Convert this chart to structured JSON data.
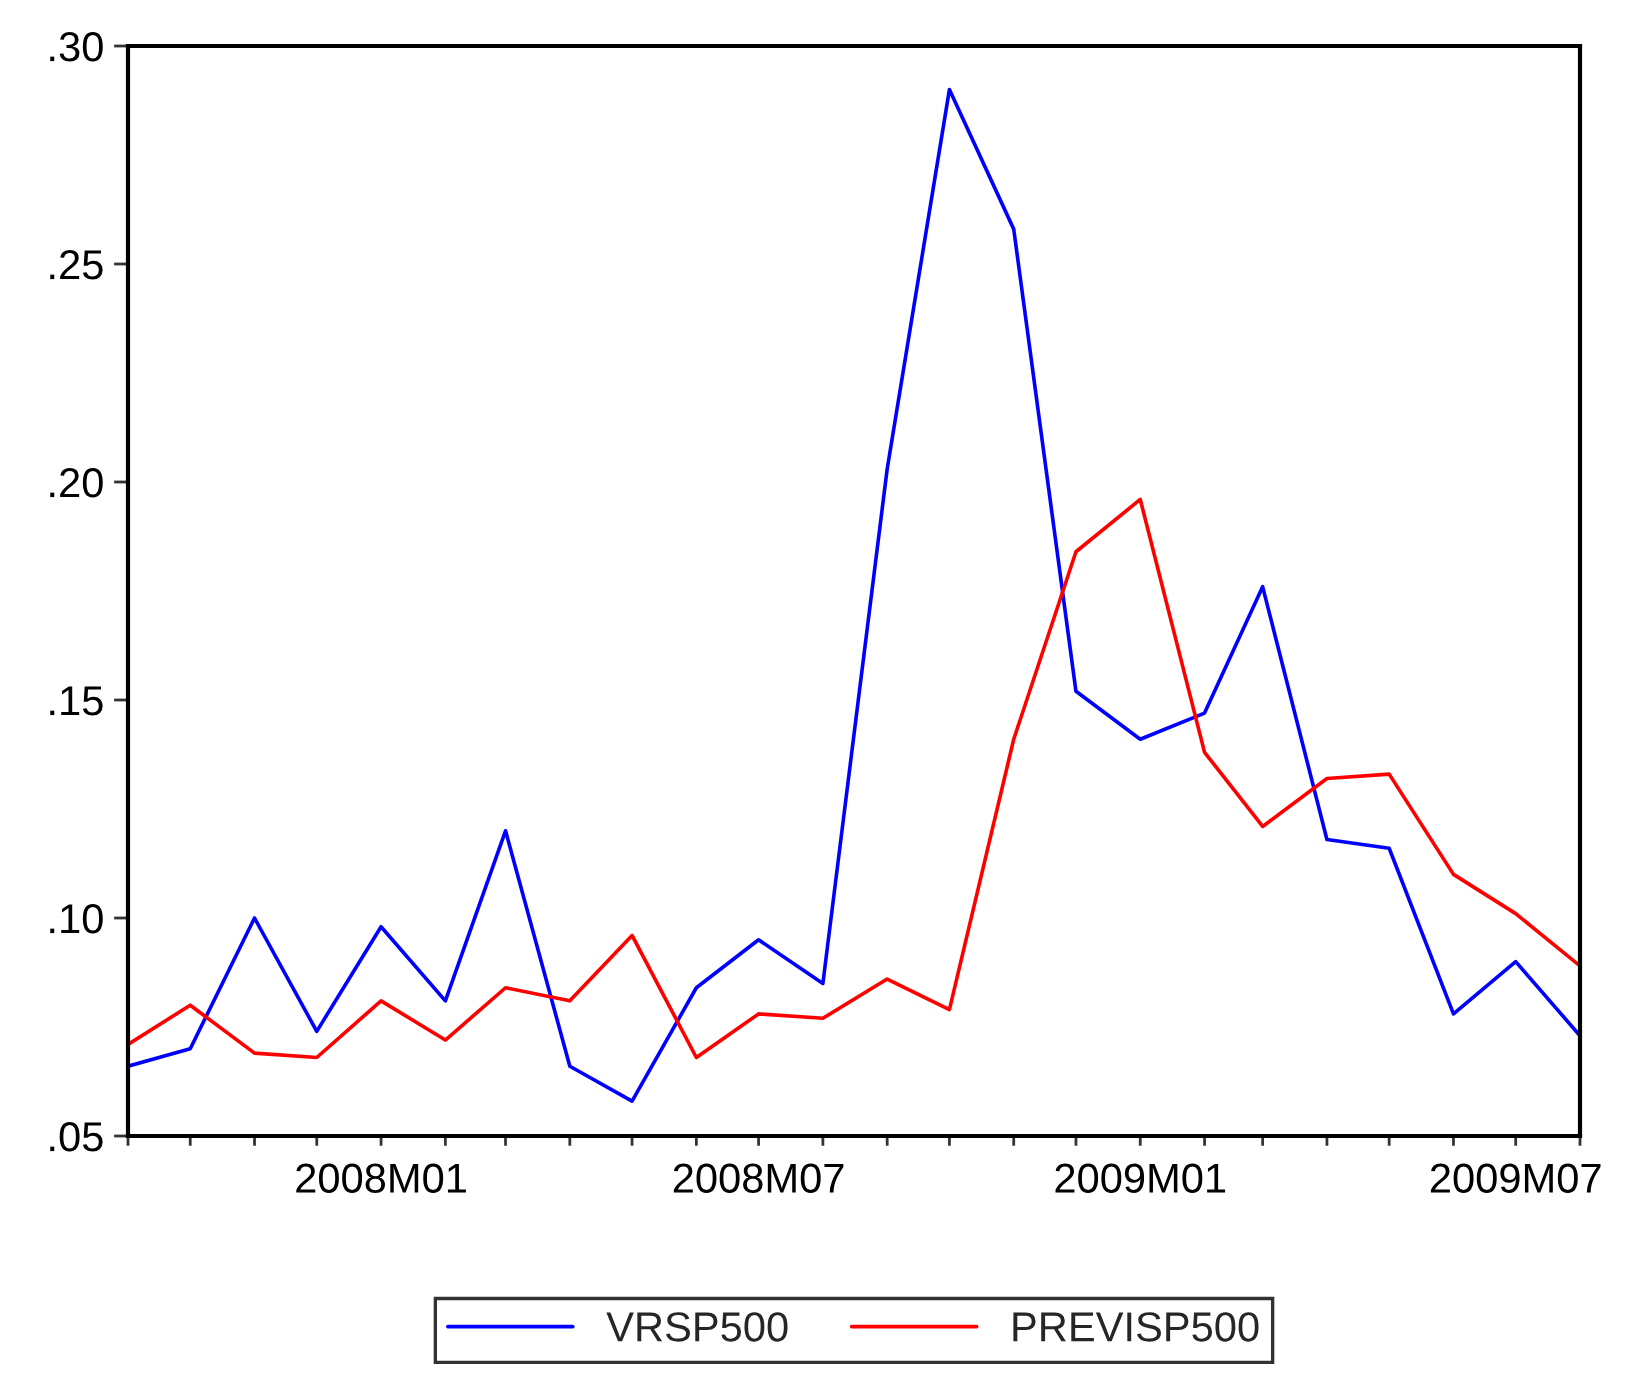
{
  "chart_data": {
    "type": "line",
    "x": [
      "2007-09",
      "2007-10",
      "2007-11",
      "2007-12",
      "2008-01",
      "2008-02",
      "2008-03",
      "2008-04",
      "2008-05",
      "2008-06",
      "2008-07",
      "2008-08",
      "2008-09",
      "2008-10",
      "2008-11",
      "2008-12",
      "2009-01",
      "2009-02",
      "2009-03",
      "2009-04",
      "2009-05",
      "2009-06",
      "2009-07",
      "2009-08"
    ],
    "series": [
      {
        "name": "VRSP500",
        "color": "#0000ff",
        "values": [
          0.066,
          0.07,
          0.1,
          0.074,
          0.098,
          0.081,
          0.12,
          0.066,
          0.058,
          0.084,
          0.095,
          0.085,
          0.203,
          0.29,
          0.258,
          0.152,
          0.141,
          0.147,
          0.176,
          0.118,
          0.116,
          0.078,
          0.09,
          0.073
        ]
      },
      {
        "name": "PREVISP500",
        "color": "#ff0000",
        "values": [
          0.071,
          0.08,
          0.069,
          0.068,
          0.081,
          0.072,
          0.084,
          0.081,
          0.096,
          0.068,
          0.078,
          0.077,
          0.086,
          0.079,
          0.141,
          0.184,
          0.196,
          0.138,
          0.121,
          0.132,
          0.133,
          0.11,
          0.101,
          0.089
        ]
      }
    ],
    "xlim": [
      "2007-09",
      "2009-08"
    ],
    "xticks": [
      {
        "value": "2007-09",
        "label": null
      },
      {
        "value": "2007-10",
        "label": null
      },
      {
        "value": "2007-11",
        "label": null
      },
      {
        "value": "2007-12",
        "label": null
      },
      {
        "value": "2008-01",
        "label": "2008M01"
      },
      {
        "value": "2008-02",
        "label": null
      },
      {
        "value": "2008-03",
        "label": null
      },
      {
        "value": "2008-04",
        "label": null
      },
      {
        "value": "2008-05",
        "label": null
      },
      {
        "value": "2008-06",
        "label": null
      },
      {
        "value": "2008-07",
        "label": "2008M07"
      },
      {
        "value": "2008-08",
        "label": null
      },
      {
        "value": "2008-09",
        "label": null
      },
      {
        "value": "2008-10",
        "label": null
      },
      {
        "value": "2008-11",
        "label": null
      },
      {
        "value": "2008-12",
        "label": null
      },
      {
        "value": "2009-01",
        "label": "2009M01"
      },
      {
        "value": "2009-02",
        "label": null
      },
      {
        "value": "2009-03",
        "label": null
      },
      {
        "value": "2009-04",
        "label": null
      },
      {
        "value": "2009-05",
        "label": null
      },
      {
        "value": "2009-06",
        "label": null
      },
      {
        "value": "2009-07",
        "label": "2009M07"
      },
      {
        "value": "2009-08",
        "label": null
      }
    ],
    "ylim": [
      0.05,
      0.3
    ],
    "yticks": [
      {
        "value": 0.05,
        "label": ".05"
      },
      {
        "value": 0.1,
        "label": ".10"
      },
      {
        "value": 0.15,
        "label": ".15"
      },
      {
        "value": 0.2,
        "label": ".20"
      },
      {
        "value": 0.25,
        "label": ".25"
      },
      {
        "value": 0.3,
        "label": ".30"
      }
    ],
    "grid": false,
    "legend": "bottom",
    "line_style": "solid",
    "marker": "none"
  }
}
